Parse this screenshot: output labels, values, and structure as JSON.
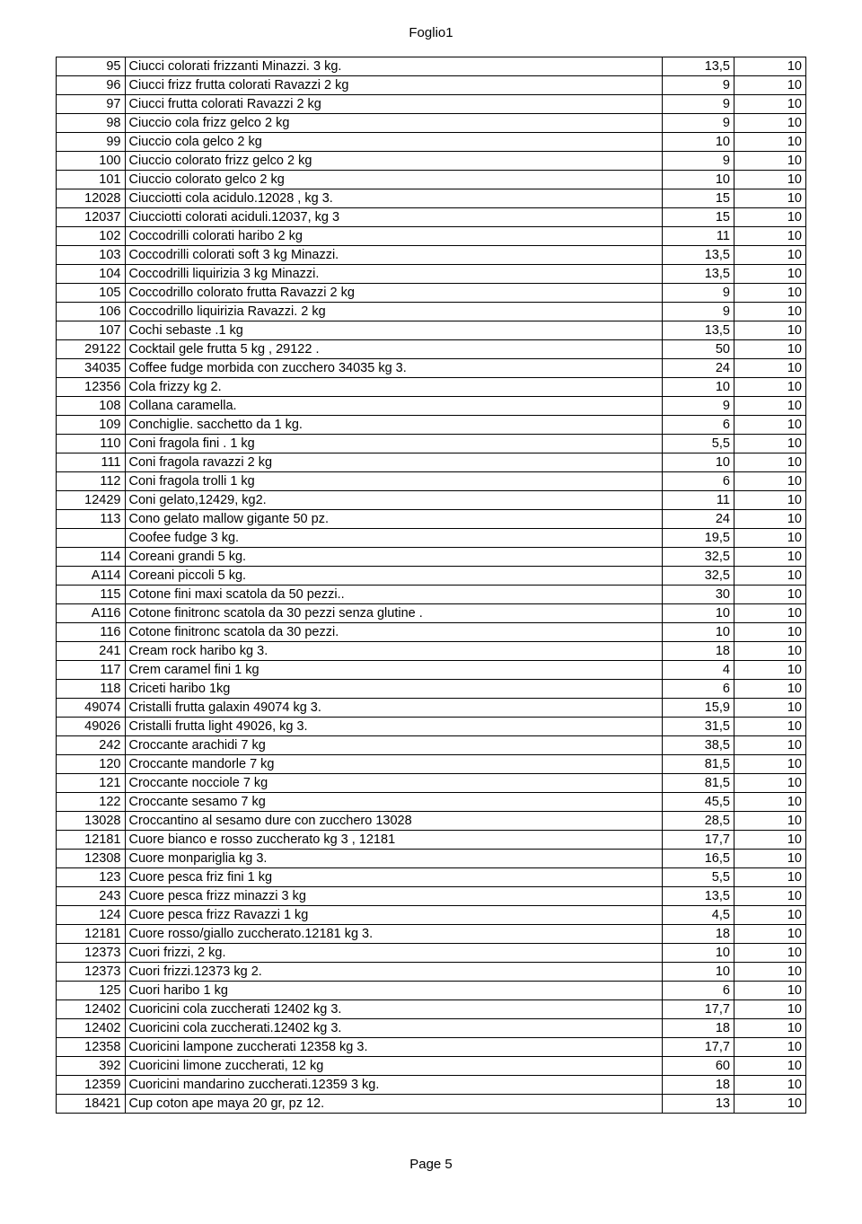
{
  "header": "Foglio1",
  "footer": "Page 5",
  "rows": [
    [
      "95",
      "Ciucci colorati frizzanti Minazzi. 3 kg.",
      "13,5",
      "10"
    ],
    [
      "96",
      "Ciucci frizz frutta colorati Ravazzi 2 kg",
      "9",
      "10"
    ],
    [
      "97",
      "Ciucci frutta colorati Ravazzi 2 kg",
      "9",
      "10"
    ],
    [
      "98",
      "Ciuccio cola frizz gelco 2 kg",
      "9",
      "10"
    ],
    [
      "99",
      "Ciuccio cola gelco 2 kg",
      "10",
      "10"
    ],
    [
      "100",
      "Ciuccio colorato frizz gelco 2 kg",
      "9",
      "10"
    ],
    [
      "101",
      "Ciuccio colorato gelco 2 kg",
      "10",
      "10"
    ],
    [
      "12028",
      "Ciucciotti cola acidulo.12028 , kg 3.",
      "15",
      "10"
    ],
    [
      "12037",
      "Ciucciotti colorati aciduli.12037, kg 3",
      "15",
      "10"
    ],
    [
      "102",
      "Coccodrilli colorati haribo 2 kg",
      "11",
      "10"
    ],
    [
      "103",
      "Coccodrilli colorati soft 3 kg Minazzi.",
      "13,5",
      "10"
    ],
    [
      "104",
      "Coccodrilli liquirizia 3 kg Minazzi.",
      "13,5",
      "10"
    ],
    [
      "105",
      "Coccodrillo colorato frutta Ravazzi 2 kg",
      "9",
      "10"
    ],
    [
      "106",
      "Coccodrillo liquirizia Ravazzi. 2 kg",
      "9",
      "10"
    ],
    [
      "107",
      "Cochi sebaste .1 kg",
      "13,5",
      "10"
    ],
    [
      "29122",
      "Cocktail gele frutta 5 kg , 29122 .",
      "50",
      "10"
    ],
    [
      "34035",
      "Coffee fudge morbida con zucchero  34035  kg 3.",
      "24",
      "10"
    ],
    [
      "12356",
      "Cola frizzy  kg 2.",
      "10",
      "10"
    ],
    [
      "108",
      "Collana caramella.",
      "9",
      "10"
    ],
    [
      "109",
      "Conchiglie. sacchetto da 1 kg.",
      "6",
      "10"
    ],
    [
      "110",
      "Coni fragola fini . 1 kg",
      "5,5",
      "10"
    ],
    [
      "111",
      "Coni fragola ravazzi 2 kg",
      "10",
      "10"
    ],
    [
      "112",
      "Coni fragola trolli 1 kg",
      "6",
      "10"
    ],
    [
      "12429",
      "Coni gelato,12429, kg2.",
      "11",
      "10"
    ],
    [
      "113",
      "Cono gelato mallow gigante 50 pz.",
      "24",
      "10"
    ],
    [
      "",
      "Coofee fudge 3 kg.",
      "19,5",
      "10"
    ],
    [
      "114",
      "Coreani grandi  5 kg.",
      "32,5",
      "10"
    ],
    [
      "A114",
      "Coreani piccoli  5 kg.",
      "32,5",
      "10"
    ],
    [
      "115",
      "Cotone fini maxi scatola da 50 pezzi..",
      "30",
      "10"
    ],
    [
      "A116",
      "Cotone finitronc scatola da 30 pezzi senza glutine .",
      "10",
      "10"
    ],
    [
      "116",
      "Cotone finitronc scatola da 30 pezzi.",
      "10",
      "10"
    ],
    [
      "241",
      "Cream rock haribo kg 3.",
      "18",
      "10"
    ],
    [
      "117",
      "Crem caramel fini 1 kg",
      "4",
      "10"
    ],
    [
      "118",
      "Criceti haribo 1kg",
      "6",
      "10"
    ],
    [
      "49074",
      "Cristalli frutta galaxin 49074 kg 3.",
      "15,9",
      "10"
    ],
    [
      "49026",
      "Cristalli frutta light 49026, kg 3.",
      "31,5",
      "10"
    ],
    [
      "242",
      "Croccante arachidi 7 kg",
      "38,5",
      "10"
    ],
    [
      "120",
      "Croccante mandorle 7 kg",
      "81,5",
      "10"
    ],
    [
      "121",
      "Croccante nocciole 7 kg",
      "81,5",
      "10"
    ],
    [
      "122",
      "Croccante sesamo 7 kg",
      "45,5",
      "10"
    ],
    [
      "13028",
      "Croccantino al sesamo dure con zucchero 13028",
      "28,5",
      "10"
    ],
    [
      "12181",
      "Cuore bianco e rosso zuccherato kg 3 , 12181",
      "17,7",
      "10"
    ],
    [
      "12308",
      "Cuore monpariglia kg 3.",
      "16,5",
      "10"
    ],
    [
      "123",
      "Cuore pesca friz fini 1 kg",
      "5,5",
      "10"
    ],
    [
      "243",
      "Cuore pesca frizz minazzi 3 kg",
      "13,5",
      "10"
    ],
    [
      "124",
      "Cuore pesca frizz Ravazzi 1 kg",
      "4,5",
      "10"
    ],
    [
      "12181",
      "Cuore rosso/giallo zuccherato.12181 kg 3.",
      "18",
      "10"
    ],
    [
      "12373",
      "Cuori frizzi, 2 kg.",
      "10",
      "10"
    ],
    [
      "12373",
      "Cuori frizzi.12373 kg 2.",
      "10",
      "10"
    ],
    [
      "125",
      "Cuori haribo 1 kg",
      "6",
      "10"
    ],
    [
      "12402",
      "Cuoricini cola zuccherati 12402 kg 3.",
      "17,7",
      "10"
    ],
    [
      "12402",
      "Cuoricini cola zuccherati.12402 kg 3.",
      "18",
      "10"
    ],
    [
      "12358",
      "Cuoricini lampone zuccherati 12358 kg 3.",
      "17,7",
      "10"
    ],
    [
      "392",
      "Cuoricini limone zuccherati, 12 kg",
      "60",
      "10"
    ],
    [
      "12359",
      "Cuoricini mandarino zuccherati.12359  3 kg.",
      "18",
      "10"
    ],
    [
      "18421",
      "Cup coton ape maya 20 gr, pz 12.",
      "13",
      "10"
    ]
  ]
}
